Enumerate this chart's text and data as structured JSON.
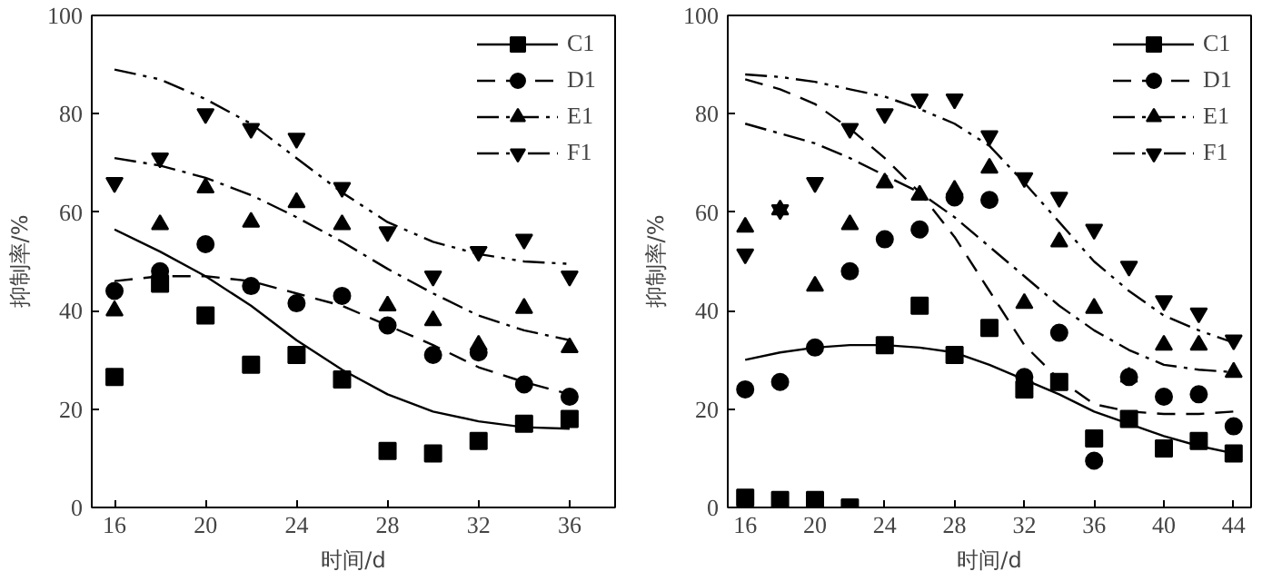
{
  "chart_data": [
    {
      "type": "scatter",
      "xlabel": "时间/d",
      "ylabel": "抑制率/%",
      "xlim": [
        15,
        38
      ],
      "ylim": [
        0,
        100
      ],
      "xticks": [
        16,
        20,
        24,
        28,
        32,
        36
      ],
      "yticks": [
        0,
        20,
        40,
        60,
        80,
        100
      ],
      "grid": false,
      "legend": "top right",
      "x": [
        16,
        18,
        20,
        22,
        24,
        26,
        28,
        30,
        32,
        34,
        36
      ],
      "series": [
        {
          "name": "C1",
          "marker": "square",
          "color": "#000000",
          "values": [
            26.5,
            45.5,
            39,
            29,
            31,
            26,
            11.5,
            11,
            13.5,
            17,
            18
          ]
        },
        {
          "name": "D1",
          "marker": "circle",
          "color": "#000000",
          "values": [
            44,
            48,
            53.5,
            45,
            41.5,
            43,
            37,
            31,
            31.5,
            25,
            22.5
          ]
        },
        {
          "name": "E1",
          "marker": "triangle",
          "color": "#000000",
          "values": [
            40,
            57.5,
            65,
            58,
            62,
            57.5,
            41,
            38,
            33,
            40.5,
            32.5
          ]
        },
        {
          "name": "F1",
          "color": "#000000",
          "values": [
            66,
            71,
            80,
            77,
            75,
            65,
            56,
            47,
            52,
            54.5,
            47
          ]
        },
        {
          "name": "C1",
          "type": "line",
          "line_style": "solid",
          "color": "#000000",
          "values": [
            56.5,
            52,
            47,
            41,
            34,
            28,
            23,
            19.5,
            17.5,
            16.3,
            16
          ]
        },
        {
          "name": "D1",
          "type": "line",
          "line_style": "dashed",
          "color": "#000000",
          "values": [
            46,
            47,
            47,
            46,
            43.5,
            41,
            37,
            33,
            28.5,
            25.5,
            23
          ]
        },
        {
          "name": "E1",
          "type": "line",
          "line_style": "dashdot",
          "color": "#000000",
          "values": [
            71,
            69.5,
            67,
            63.5,
            59,
            54,
            48.5,
            43.5,
            39,
            36,
            34
          ]
        },
        {
          "name": "F1",
          "type": "line",
          "line_style": "dashdotdot",
          "color": "#000000",
          "values": [
            89,
            87,
            83,
            78,
            71,
            64,
            58,
            54,
            51.5,
            50,
            49.5
          ]
        }
      ]
    },
    {
      "type": "scatter",
      "xlabel": "时间/d",
      "ylabel": "抑制率/%",
      "xlim": [
        15,
        45
      ],
      "ylim": [
        0,
        100
      ],
      "xticks": [
        16,
        20,
        24,
        28,
        32,
        36,
        40,
        44
      ],
      "yticks": [
        0,
        20,
        40,
        60,
        80,
        100
      ],
      "grid": false,
      "legend": "top right",
      "x": [
        16,
        18,
        20,
        22,
        24,
        26,
        28,
        30,
        32,
        34,
        36,
        38,
        40,
        42,
        44
      ],
      "series": [
        {
          "name": "C1",
          "marker": "square",
          "color": "#000000",
          "values": [
            2,
            1.5,
            1.5,
            0,
            33,
            41,
            31,
            36.5,
            24,
            25.5,
            14,
            18,
            12,
            13.5,
            11
          ]
        },
        {
          "name": "D1",
          "marker": "circle",
          "color": "#000000",
          "values": [
            24,
            25.5,
            32.5,
            48,
            54.5,
            56.5,
            63,
            62.5,
            26.5,
            35.5,
            9.5,
            26.5,
            22.5,
            23,
            16.5
          ]
        },
        {
          "name": "E1",
          "marker": "triangle",
          "color": "#000000",
          "values": [
            57,
            60.5,
            45,
            57.5,
            66,
            63.5,
            64.5,
            69,
            41.5,
            54,
            40.5,
            26.5,
            33,
            33,
            27.5
          ]
        },
        {
          "name": "F1",
          "color": "#000000",
          "values": [
            51.5,
            60.5,
            66,
            77,
            80,
            83,
            83,
            75.5,
            67,
            63,
            56.5,
            49,
            42,
            39.5,
            34
          ]
        },
        {
          "name": "C1",
          "type": "line",
          "line_style": "solid",
          "color": "#000000",
          "values": [
            30,
            31.5,
            32.5,
            33,
            33,
            32.5,
            31.5,
            29,
            26,
            23,
            19.5,
            17,
            14.5,
            12.5,
            11
          ]
        },
        {
          "name": "D1",
          "type": "line",
          "line_style": "dashed",
          "color": "#000000",
          "values": [
            87,
            85,
            82,
            77,
            71,
            64,
            55,
            44,
            33,
            26,
            21,
            19.5,
            19,
            19,
            19.5
          ]
        },
        {
          "name": "E1",
          "type": "line",
          "line_style": "dashdot",
          "color": "#000000",
          "values": [
            78,
            76,
            74,
            71,
            67.5,
            64,
            59,
            53,
            47,
            41,
            36,
            32,
            29,
            28,
            27.5
          ]
        },
        {
          "name": "F1",
          "type": "line",
          "line_style": "dashdotdot",
          "color": "#000000",
          "values": [
            88,
            87.5,
            86.5,
            85,
            83.5,
            81,
            78,
            73.5,
            66,
            58,
            50,
            44,
            39,
            36,
            33.5
          ]
        }
      ]
    }
  ]
}
